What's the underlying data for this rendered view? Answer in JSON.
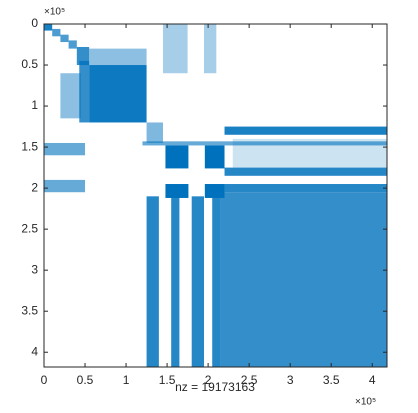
{
  "chart_data": {
    "type": "spy",
    "xlabel": "nz = 19173163",
    "x_exponent_label": "×10⁵",
    "y_exponent_label": "×10⁵",
    "color": "#0072bd",
    "xlim": [
      0,
      4.18
    ],
    "ylim": [
      0,
      4.18
    ],
    "xticks": [
      0,
      0.5,
      1,
      1.5,
      2,
      2.5,
      3,
      3.5,
      4
    ],
    "yticks": [
      0,
      0.5,
      1,
      1.5,
      2,
      2.5,
      3,
      3.5,
      4
    ],
    "blocks": [
      {
        "x": [
          0,
          0.1
        ],
        "y": [
          0,
          0.08
        ],
        "density": 0.9
      },
      {
        "x": [
          0.1,
          0.2
        ],
        "y": [
          0.06,
          0.15
        ],
        "density": 0.7
      },
      {
        "x": [
          0.2,
          0.3
        ],
        "y": [
          0.13,
          0.22
        ],
        "density": 0.7
      },
      {
        "x": [
          0.3,
          0.4
        ],
        "y": [
          0.2,
          0.3
        ],
        "density": 0.7
      },
      {
        "x": [
          0.4,
          0.55
        ],
        "y": [
          0.28,
          0.5
        ],
        "density": 0.8
      },
      {
        "x": [
          0.55,
          1.25
        ],
        "y": [
          0.3,
          0.5
        ],
        "density": 0.45
      },
      {
        "x": [
          0.55,
          1.25
        ],
        "y": [
          0.5,
          1.2
        ],
        "density": 0.95
      },
      {
        "x": [
          0.2,
          0.45
        ],
        "y": [
          0.6,
          1.15
        ],
        "density": 0.45
      },
      {
        "x": [
          0.43,
          0.55
        ],
        "y": [
          0.45,
          1.2
        ],
        "density": 0.8
      },
      {
        "x": [
          1.45,
          1.75
        ],
        "y": [
          0,
          0.6
        ],
        "density": 0.35
      },
      {
        "x": [
          1.95,
          2.1
        ],
        "y": [
          0,
          0.6
        ],
        "density": 0.35
      },
      {
        "x": [
          1.25,
          1.45
        ],
        "y": [
          1.2,
          1.45
        ],
        "density": 0.5
      },
      {
        "x": [
          1.48,
          1.76
        ],
        "y": [
          1.48,
          1.76
        ],
        "density": 1
      },
      {
        "x": [
          1.96,
          2.2
        ],
        "y": [
          1.48,
          1.76
        ],
        "density": 1
      },
      {
        "x": [
          1.48,
          1.76
        ],
        "y": [
          1.95,
          2.12
        ],
        "density": 1
      },
      {
        "x": [
          1.96,
          2.2
        ],
        "y": [
          1.95,
          2.12
        ],
        "density": 1
      },
      {
        "x": [
          2.2,
          4.18
        ],
        "y": [
          1.25,
          1.35
        ],
        "density": 0.9
      },
      {
        "x": [
          2.2,
          4.18
        ],
        "y": [
          1.75,
          1.85
        ],
        "density": 0.85
      },
      {
        "x": [
          2.2,
          4.18
        ],
        "y": [
          1.95,
          2.05
        ],
        "density": 0.85
      },
      {
        "x": [
          2.3,
          4.18
        ],
        "y": [
          1.4,
          1.75
        ],
        "density": 0.2
      },
      {
        "x": [
          1.2,
          4.18
        ],
        "y": [
          1.43,
          1.48
        ],
        "density": 0.6
      },
      {
        "x": [
          0,
          0.5
        ],
        "y": [
          1.45,
          1.6
        ],
        "density": 0.6
      },
      {
        "x": [
          0,
          0.5
        ],
        "y": [
          1.9,
          2.05
        ],
        "density": 0.6
      },
      {
        "x": [
          2.15,
          4.18
        ],
        "y": [
          2.05,
          4.18
        ],
        "density": 0.8
      },
      {
        "x": [
          1.25,
          1.4
        ],
        "y": [
          2.1,
          4.18
        ],
        "density": 0.85
      },
      {
        "x": [
          1.55,
          1.65
        ],
        "y": [
          2.1,
          4.18
        ],
        "density": 0.85
      },
      {
        "x": [
          1.8,
          1.95
        ],
        "y": [
          2.1,
          4.18
        ],
        "density": 0.85
      },
      {
        "x": [
          2.05,
          2.15
        ],
        "y": [
          2.0,
          4.18
        ],
        "density": 0.85
      }
    ]
  }
}
